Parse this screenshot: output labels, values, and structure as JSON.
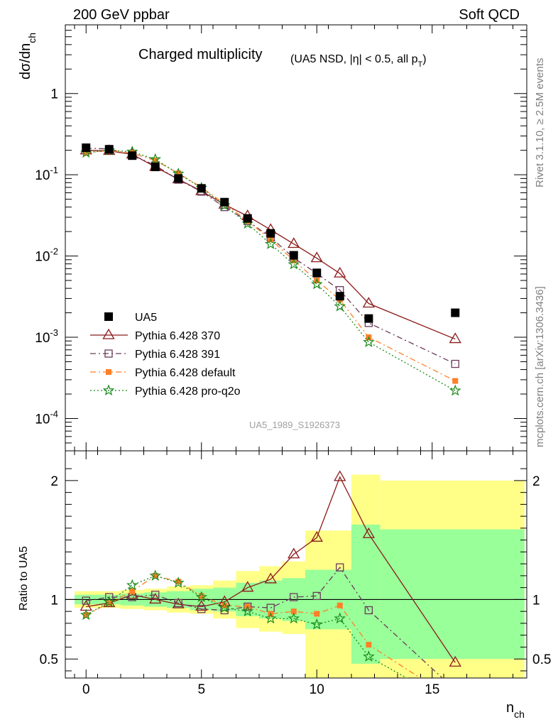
{
  "header": {
    "left": "200 GeV ppbar",
    "right": "Soft QCD"
  },
  "side_labels": {
    "rivet": "Rivet 3.1.10, ≥ 2.5M events",
    "source": "mcplots.cern.ch [arXiv:1306.3436]"
  },
  "watermark": "UA5_1989_S1926373",
  "chart_data": [
    {
      "type": "scatter",
      "panel": "main",
      "title": "Charged multiplicity",
      "subtitle": "(UA5 NSD, |η| < 0.5, all p_T)",
      "xlabel": "n_ch",
      "ylabel": "dσ/dn_ch",
      "log_y": true,
      "xlim": [
        -0.9,
        19.1
      ],
      "ylim": [
        4e-05,
        7
      ],
      "x_ticks": [
        0,
        5,
        10,
        15
      ],
      "y_ticks": [
        {
          "value": 0.0001,
          "base": "10",
          "exp": "-4"
        },
        {
          "value": 0.001,
          "base": "10",
          "exp": "-3"
        },
        {
          "value": 0.01,
          "base": "10",
          "exp": "-2"
        },
        {
          "value": 0.1,
          "base": "10",
          "exp": "-1"
        },
        {
          "value": 1,
          "base": "1",
          "exp": ""
        }
      ],
      "legend_position": "bottom-left",
      "series": [
        {
          "name": "UA5",
          "color": "#000000",
          "marker": "filled-square",
          "line": "none",
          "x": [
            0,
            1,
            2,
            3,
            4,
            5,
            6,
            7,
            8,
            9,
            10,
            11,
            12.25,
            16
          ],
          "y": [
            0.215,
            0.205,
            0.172,
            0.125,
            0.09,
            0.068,
            0.046,
            0.029,
            0.019,
            0.0102,
            0.0062,
            0.0032,
            0.0017,
            0.002
          ]
        },
        {
          "name": "Pythia 6.428 370",
          "color": "#8b1a1a",
          "marker": "open-triangle",
          "line": "solid",
          "x": [
            0,
            1,
            2,
            3,
            4,
            5,
            6,
            7,
            8,
            9,
            10,
            11,
            12.25,
            16
          ],
          "y": [
            0.2,
            0.197,
            0.178,
            0.125,
            0.088,
            0.063,
            0.043,
            0.031,
            0.021,
            0.0141,
            0.0094,
            0.0061,
            0.0026,
            0.00095
          ]
        },
        {
          "name": "Pythia 6.428 391",
          "color": "#6b3a5a",
          "marker": "open-square",
          "line": "dashdot",
          "x": [
            0,
            1,
            2,
            3,
            4,
            5,
            6,
            7,
            8,
            9,
            10,
            11,
            12.25,
            16
          ],
          "y": [
            0.212,
            0.208,
            0.176,
            0.13,
            0.087,
            0.062,
            0.04,
            0.027,
            0.017,
            0.0095,
            0.0061,
            0.0038,
            0.0015,
            0.00047
          ]
        },
        {
          "name": "Pythia 6.428 default",
          "color": "#ff7f27",
          "marker": "filled-square-small",
          "line": "dashdot",
          "x": [
            0,
            1,
            2,
            3,
            4,
            5,
            6,
            7,
            8,
            9,
            10,
            11,
            12.25,
            16
          ],
          "y": [
            0.187,
            0.198,
            0.184,
            0.15,
            0.104,
            0.07,
            0.044,
            0.027,
            0.016,
            0.0088,
            0.005,
            0.0029,
            0.001,
            0.00029
          ]
        },
        {
          "name": "Pythia 6.428 pro-q2o",
          "color": "#1a8a1a",
          "marker": "open-star",
          "line": "dotted",
          "x": [
            0,
            1,
            2,
            3,
            4,
            5,
            6,
            7,
            8,
            9,
            10,
            11,
            12.25,
            16
          ],
          "y": [
            0.187,
            0.2,
            0.192,
            0.155,
            0.103,
            0.069,
            0.042,
            0.025,
            0.014,
            0.0079,
            0.0045,
            0.0024,
            0.00087,
            0.00022
          ]
        }
      ]
    },
    {
      "type": "line",
      "panel": "ratio",
      "ylabel": "Ratio to UA5",
      "xlabel": "n_ch",
      "xlim": [
        -0.9,
        19.1
      ],
      "ylim": [
        0.34,
        2.25
      ],
      "y_ticks": [
        0.5,
        1,
        2
      ],
      "reference_line": 1,
      "bands": [
        {
          "x0": -0.5,
          "x1": 0.5,
          "stat_lo": 0.96,
          "stat_hi": 1.04,
          "tot_lo": 0.93,
          "tot_hi": 1.07
        },
        {
          "x0": 0.5,
          "x1": 1.5,
          "stat_lo": 0.96,
          "stat_hi": 1.04,
          "tot_lo": 0.93,
          "tot_hi": 1.07
        },
        {
          "x0": 1.5,
          "x1": 2.5,
          "stat_lo": 0.95,
          "stat_hi": 1.05,
          "tot_lo": 0.92,
          "tot_hi": 1.08
        },
        {
          "x0": 2.5,
          "x1": 3.5,
          "stat_lo": 0.94,
          "stat_hi": 1.06,
          "tot_lo": 0.91,
          "tot_hi": 1.09
        },
        {
          "x0": 3.5,
          "x1": 4.5,
          "stat_lo": 0.93,
          "stat_hi": 1.07,
          "tot_lo": 0.89,
          "tot_hi": 1.11
        },
        {
          "x0": 4.5,
          "x1": 5.5,
          "stat_lo": 0.91,
          "stat_hi": 1.09,
          "tot_lo": 0.88,
          "tot_hi": 1.12
        },
        {
          "x0": 5.5,
          "x1": 6.5,
          "stat_lo": 0.9,
          "stat_hi": 1.1,
          "tot_lo": 0.84,
          "tot_hi": 1.16
        },
        {
          "x0": 6.5,
          "x1": 7.5,
          "stat_lo": 0.86,
          "stat_hi": 1.14,
          "tot_lo": 0.76,
          "tot_hi": 1.24
        },
        {
          "x0": 7.5,
          "x1": 8.5,
          "stat_lo": 0.84,
          "stat_hi": 1.16,
          "tot_lo": 0.73,
          "tot_hi": 1.28
        },
        {
          "x0": 8.5,
          "x1": 9.5,
          "stat_lo": 0.82,
          "stat_hi": 1.18,
          "tot_lo": 0.71,
          "tot_hi": 1.32
        },
        {
          "x0": 9.5,
          "x1": 11.5,
          "stat_lo": 0.75,
          "stat_hi": 1.25,
          "tot_lo": 0.34,
          "tot_hi": 1.58
        },
        {
          "x0": 11.5,
          "x1": 12.75,
          "stat_lo": 0.46,
          "stat_hi": 1.63,
          "tot_lo": 0.34,
          "tot_hi": 2.05
        },
        {
          "x0": 12.75,
          "x1": 19.0,
          "stat_lo": 0.5,
          "stat_hi": 1.59,
          "tot_lo": 0.34,
          "tot_hi": 2.0
        }
      ],
      "series": [
        {
          "name": "Pythia 6.428 370",
          "x": [
            0,
            1,
            2,
            3,
            4,
            5,
            6,
            7,
            8,
            9,
            10,
            11,
            12.25,
            16
          ],
          "y": [
            0.94,
            0.97,
            1.04,
            1.0,
            0.96,
            0.94,
            0.98,
            1.1,
            1.17,
            1.38,
            1.52,
            2.03,
            1.55,
            0.47
          ]
        },
        {
          "name": "Pythia 6.428 391",
          "x": [
            0,
            1,
            2,
            3,
            4,
            5,
            6,
            7,
            8,
            9,
            10,
            11,
            12.25,
            16
          ],
          "y": [
            0.99,
            1.02,
            1.02,
            1.04,
            0.97,
            0.92,
            0.91,
            0.94,
            0.93,
            1.02,
            1.03,
            1.27,
            0.91,
            0.24
          ]
        },
        {
          "name": "Pythia 6.428 default",
          "x": [
            0,
            1,
            2,
            3,
            4,
            5,
            6,
            7,
            8,
            9,
            10,
            11,
            12.25,
            16
          ],
          "y": [
            0.87,
            0.97,
            1.07,
            1.2,
            1.15,
            1.03,
            0.95,
            0.94,
            0.88,
            0.9,
            0.88,
            0.95,
            0.62,
            0.15
          ]
        },
        {
          "name": "Pythia 6.428 pro-q2o",
          "x": [
            0,
            1,
            2,
            3,
            4,
            5,
            6,
            7,
            8,
            9,
            10,
            11,
            12.25,
            16
          ],
          "y": [
            0.87,
            0.98,
            1.12,
            1.2,
            1.14,
            1.02,
            0.93,
            0.9,
            0.84,
            0.84,
            0.79,
            0.84,
            0.52,
            0.11
          ]
        }
      ]
    }
  ]
}
